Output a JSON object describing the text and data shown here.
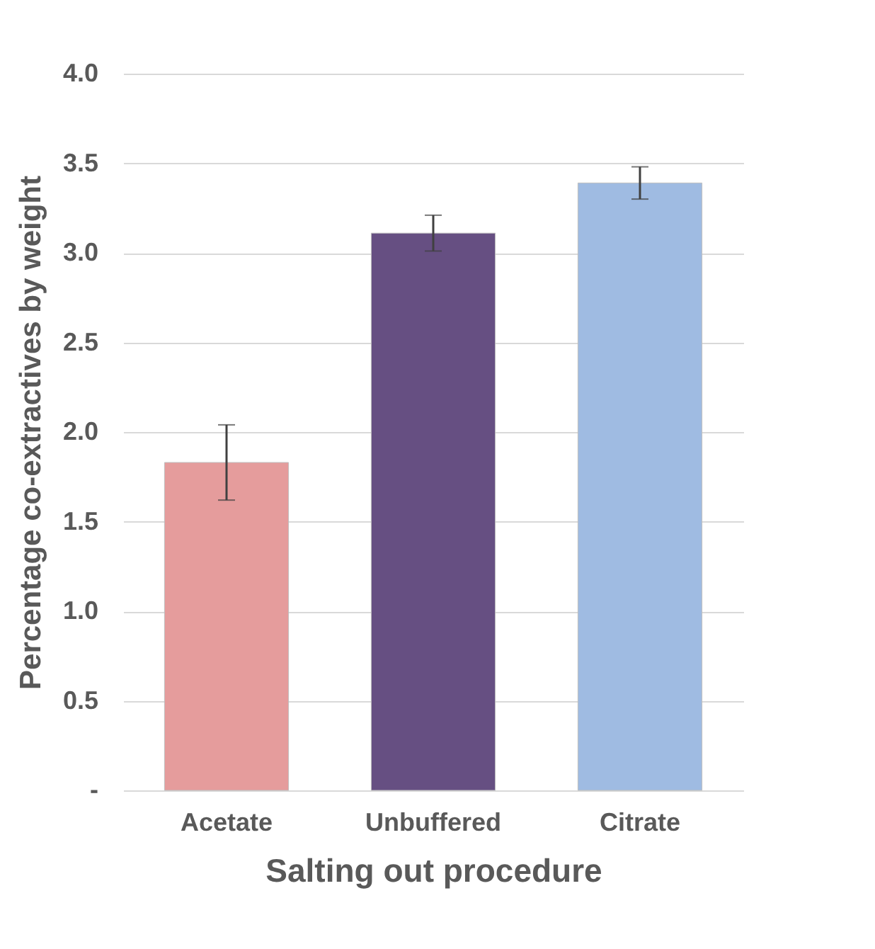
{
  "chart_data": {
    "type": "bar",
    "xlabel": "Salting out procedure",
    "ylabel": "Percentage co-extractives by weight",
    "categories": [
      "Acetate",
      "Unbuffered",
      "Citrate"
    ],
    "values": [
      1.83,
      3.11,
      3.39
    ],
    "colors": [
      "#e59c9c",
      "#664f82",
      "#9fbbe2"
    ],
    "errors": [
      0.21,
      0.1,
      0.09
    ],
    "ylim": [
      0,
      4
    ],
    "yticks": [
      {
        "value": 0,
        "label": "-"
      },
      {
        "value": 0.5,
        "label": "0.5"
      },
      {
        "value": 1,
        "label": "1.0"
      },
      {
        "value": 1.5,
        "label": "1.5"
      },
      {
        "value": 2,
        "label": "2.0"
      },
      {
        "value": 2.5,
        "label": "2.5"
      },
      {
        "value": 3,
        "label": "3.0"
      },
      {
        "value": 3.5,
        "label": "3.5"
      },
      {
        "value": 4,
        "label": "4.0"
      }
    ],
    "grid": "y"
  }
}
